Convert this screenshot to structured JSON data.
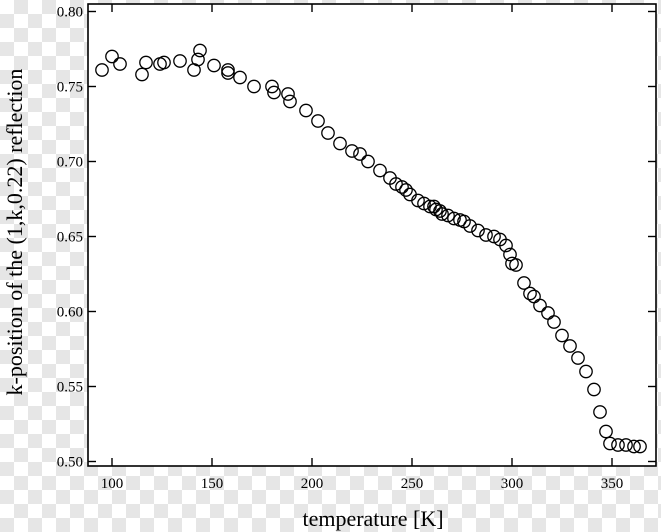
{
  "chart_data": {
    "type": "scatter",
    "title": "",
    "xlabel": "temperature [K]",
    "ylabel": "k-position of the (1,k,0.22) reflection",
    "xlim": [
      88,
      372
    ],
    "ylim": [
      0.497,
      0.805
    ],
    "x_ticks": [
      100,
      150,
      200,
      250,
      300,
      350
    ],
    "y_ticks": [
      0.5,
      0.55,
      0.6,
      0.65,
      0.7,
      0.75,
      0.8
    ],
    "x_tick_labels": [
      "100",
      "150",
      "200",
      "250",
      "300",
      "350"
    ],
    "y_tick_labels": [
      "0.50",
      "0.55",
      "0.60",
      "0.65",
      "0.70",
      "0.75",
      "0.80"
    ],
    "grid": false,
    "marker": "open-circle",
    "colors": {
      "marker": "#000000",
      "axis": "#000000"
    },
    "series": [
      {
        "points": [
          [
            95,
            0.761
          ],
          [
            100,
            0.77
          ],
          [
            104,
            0.765
          ],
          [
            115,
            0.758
          ],
          [
            117,
            0.766
          ],
          [
            124,
            0.765
          ],
          [
            126,
            0.766
          ],
          [
            134,
            0.767
          ],
          [
            141,
            0.761
          ],
          [
            143,
            0.768
          ],
          [
            144,
            0.774
          ],
          [
            151,
            0.764
          ],
          [
            158,
            0.759
          ],
          [
            158,
            0.761
          ],
          [
            164,
            0.756
          ],
          [
            171,
            0.75
          ],
          [
            180,
            0.75
          ],
          [
            181,
            0.746
          ],
          [
            188,
            0.745
          ],
          [
            189,
            0.74
          ],
          [
            197,
            0.734
          ],
          [
            203,
            0.727
          ],
          [
            208,
            0.719
          ],
          [
            214,
            0.712
          ],
          [
            220,
            0.707
          ],
          [
            224,
            0.705
          ],
          [
            228,
            0.7
          ],
          [
            234,
            0.694
          ],
          [
            239,
            0.689
          ],
          [
            242,
            0.685
          ],
          [
            245,
            0.683
          ],
          [
            247,
            0.681
          ],
          [
            249,
            0.678
          ],
          [
            253,
            0.674
          ],
          [
            256,
            0.672
          ],
          [
            259,
            0.67
          ],
          [
            261,
            0.67
          ],
          [
            262,
            0.668
          ],
          [
            264,
            0.667
          ],
          [
            265,
            0.665
          ],
          [
            268,
            0.664
          ],
          [
            271,
            0.662
          ],
          [
            274,
            0.661
          ],
          [
            276,
            0.66
          ],
          [
            279,
            0.657
          ],
          [
            283,
            0.654
          ],
          [
            287,
            0.651
          ],
          [
            291,
            0.65
          ],
          [
            294,
            0.648
          ],
          [
            297,
            0.644
          ],
          [
            299,
            0.638
          ],
          [
            300,
            0.632
          ],
          [
            302,
            0.631
          ],
          [
            306,
            0.619
          ],
          [
            309,
            0.612
          ],
          [
            311,
            0.61
          ],
          [
            314,
            0.604
          ],
          [
            318,
            0.599
          ],
          [
            321,
            0.593
          ],
          [
            325,
            0.584
          ],
          [
            329,
            0.577
          ],
          [
            333,
            0.569
          ],
          [
            337,
            0.56
          ],
          [
            341,
            0.548
          ],
          [
            344,
            0.533
          ],
          [
            347,
            0.52
          ],
          [
            349,
            0.512
          ],
          [
            353,
            0.511
          ],
          [
            357,
            0.511
          ],
          [
            361,
            0.51
          ],
          [
            364,
            0.51
          ]
        ]
      }
    ]
  }
}
